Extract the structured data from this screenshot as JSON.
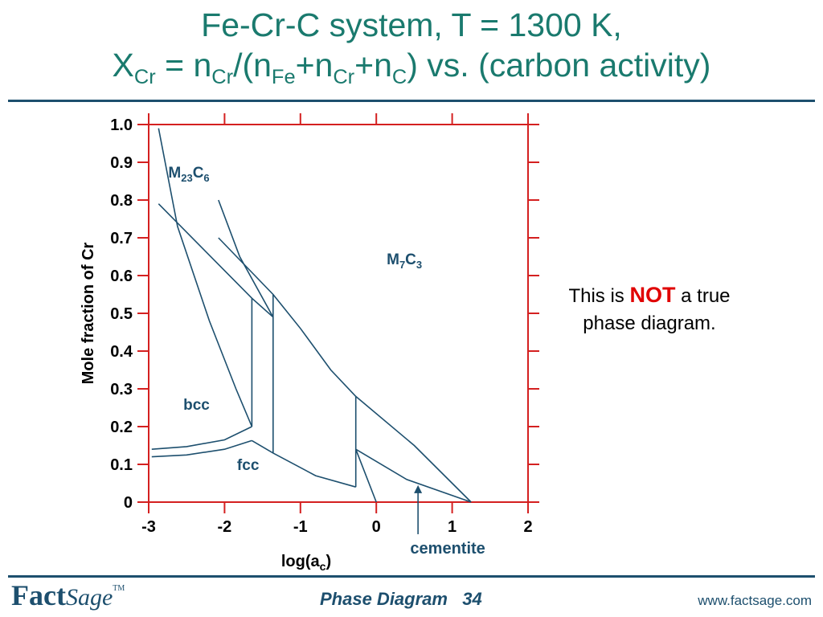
{
  "slide": {
    "title_line1": "Fe-Cr-C system, T = 1300 K,",
    "title_line2": {
      "X": "X",
      "Cr1": "Cr",
      "eq": " = n",
      "Cr2": "Cr",
      "paren": "/(n",
      "Fe": "Fe",
      "plus1": "+n",
      "Cr3": "Cr",
      "plus2": "+n",
      "C": "C",
      "tail": ") vs. (carbon activity)"
    },
    "note": {
      "prefix": "This is ",
      "emphasis": "NOT",
      "suffix": " a true",
      "line2": "phase diagram."
    },
    "footer": {
      "logo_fact": "Fact",
      "logo_sage": "Sage",
      "logo_tm": "TM",
      "title": "Phase Diagram   34",
      "url": "www.factsage.com"
    }
  },
  "colors": {
    "title": "#1a7a6e",
    "frame": "#d42020",
    "curve": "#1d4f6e",
    "text_dark": "#1d4f6e",
    "emphasis": "#e00000"
  },
  "chart_data": {
    "type": "line",
    "xlabel": {
      "main": "log(a",
      "sub": "c",
      "close": ")"
    },
    "ylabel": "Mole fraction of Cr",
    "xlim": [
      -3,
      2
    ],
    "ylim": [
      0,
      1
    ],
    "xticks": [
      "-3",
      "-2",
      "-1",
      "0",
      "1",
      "2"
    ],
    "yticks": [
      "0",
      "0.1",
      "0.2",
      "0.3",
      "0.4",
      "0.5",
      "0.6",
      "0.7",
      "0.8",
      "0.9",
      "1.0"
    ],
    "grid": false,
    "region_labels": [
      {
        "main": "M",
        "sub1": "23",
        "mid": "C",
        "sub2": "6",
        "x": -2.47,
        "y": 0.86
      },
      {
        "main": "M",
        "sub1": "7",
        "mid": "C",
        "sub2": "3",
        "x": 0.37,
        "y": 0.63
      },
      {
        "main": "bcc",
        "x": -2.37,
        "y": 0.245
      },
      {
        "main": "fcc",
        "x": -1.69,
        "y": 0.085
      }
    ],
    "annotation": {
      "text": "cementite",
      "arrow_from": [
        0.55,
        -0.085
      ],
      "arrow_to": [
        0.55,
        0.045
      ]
    },
    "curves": [
      {
        "name": "b1",
        "points": [
          [
            -2.87,
            0.99
          ],
          [
            -2.62,
            0.73
          ],
          [
            -2.2,
            0.48
          ],
          [
            -1.85,
            0.3
          ],
          [
            -1.64,
            0.2
          ]
        ]
      },
      {
        "name": "b2",
        "points": [
          [
            -2.96,
            0.14
          ],
          [
            -2.5,
            0.147
          ],
          [
            -2.0,
            0.165
          ],
          [
            -1.64,
            0.2
          ]
        ]
      },
      {
        "name": "b3",
        "points": [
          [
            -2.96,
            0.12
          ],
          [
            -2.5,
            0.125
          ],
          [
            -2.0,
            0.14
          ],
          [
            -1.64,
            0.163
          ]
        ]
      },
      {
        "name": "b4",
        "points": [
          [
            -1.64,
            0.2
          ],
          [
            -1.64,
            0.54
          ]
        ]
      },
      {
        "name": "b5",
        "points": [
          [
            -2.87,
            0.79
          ],
          [
            -1.64,
            0.54
          ],
          [
            -1.36,
            0.49
          ]
        ]
      },
      {
        "name": "b6",
        "points": [
          [
            -2.08,
            0.8
          ],
          [
            -1.8,
            0.65
          ],
          [
            -1.36,
            0.49
          ]
        ]
      },
      {
        "name": "b7",
        "points": [
          [
            -2.08,
            0.7
          ],
          [
            -1.36,
            0.55
          ],
          [
            -1.0,
            0.46
          ],
          [
            -0.6,
            0.35
          ],
          [
            -0.27,
            0.28
          ]
        ]
      },
      {
        "name": "b8",
        "points": [
          [
            -1.36,
            0.55
          ],
          [
            -1.36,
            0.13
          ]
        ]
      },
      {
        "name": "b9",
        "points": [
          [
            -1.64,
            0.163
          ],
          [
            -1.36,
            0.13
          ],
          [
            -0.8,
            0.07
          ],
          [
            -0.27,
            0.04
          ]
        ]
      },
      {
        "name": "b10",
        "points": [
          [
            -0.27,
            0.28
          ],
          [
            -0.27,
            0.04
          ]
        ]
      },
      {
        "name": "b11",
        "points": [
          [
            -0.27,
            0.28
          ],
          [
            0.5,
            0.15
          ],
          [
            1.25,
            0.0
          ]
        ]
      },
      {
        "name": "b12",
        "points": [
          [
            -0.27,
            0.14
          ],
          [
            0.4,
            0.06
          ],
          [
            1.25,
            0.0
          ]
        ]
      },
      {
        "name": "b13",
        "points": [
          [
            -0.27,
            0.14
          ],
          [
            0.0,
            0.0
          ]
        ]
      }
    ]
  }
}
